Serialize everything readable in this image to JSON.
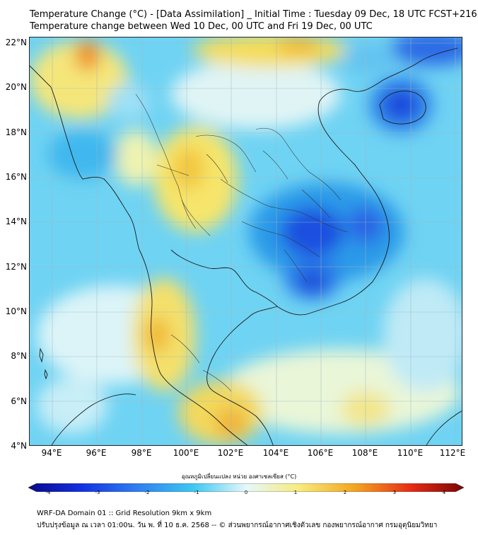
{
  "title": {
    "line1": "Temperature Change (°C) - [Data Assimilation] _ Initial Time : Tuesday 09 Dec, 18 UTC FCST+216",
    "line2": "Temperature change between Wed 10 Dec, 00 UTC and Fri 19 Dec, 00 UTC"
  },
  "axes": {
    "lat_labels": [
      "22°N",
      "20°N",
      "18°N",
      "16°N",
      "14°N",
      "12°N",
      "10°N",
      "8°N",
      "6°N",
      "4°N"
    ],
    "lon_labels": [
      "94°E",
      "96°E",
      "98°E",
      "100°E",
      "102°E",
      "104°E",
      "106°E",
      "108°E",
      "110°E",
      "112°E"
    ]
  },
  "colorbar": {
    "title": "อุณหภูมิเปลี่ยนแปลง หน่วย องศาเซลเซียส (°C)",
    "ticks": [
      "-4",
      "-3",
      "-2",
      "-1",
      "0",
      "1",
      "2",
      "3",
      "4"
    ],
    "min": -4,
    "max": 4
  },
  "footer": {
    "line1": "WRF-DA Domain 01 :: Grid Resolution 9km x 9km",
    "line2": "ปรับปรุงข้อมูล ณ เวลา 01:00น. วัน พ. ที่ 10 ธ.ค. 2568 -- © ส่วนพยากรณ์อากาศเชิงตัวเลข กองพยากรณ์อากาศ กรมอุตุนิยมวิทยา"
  },
  "colors": {
    "cold_deep": "#0b2bd6",
    "cold": "#2f7df2",
    "cool": "#4fc3f2",
    "neutral": "#dff6fb",
    "warm": "#f5e66a",
    "hot": "#f2a21d",
    "very_hot": "#e84418"
  }
}
